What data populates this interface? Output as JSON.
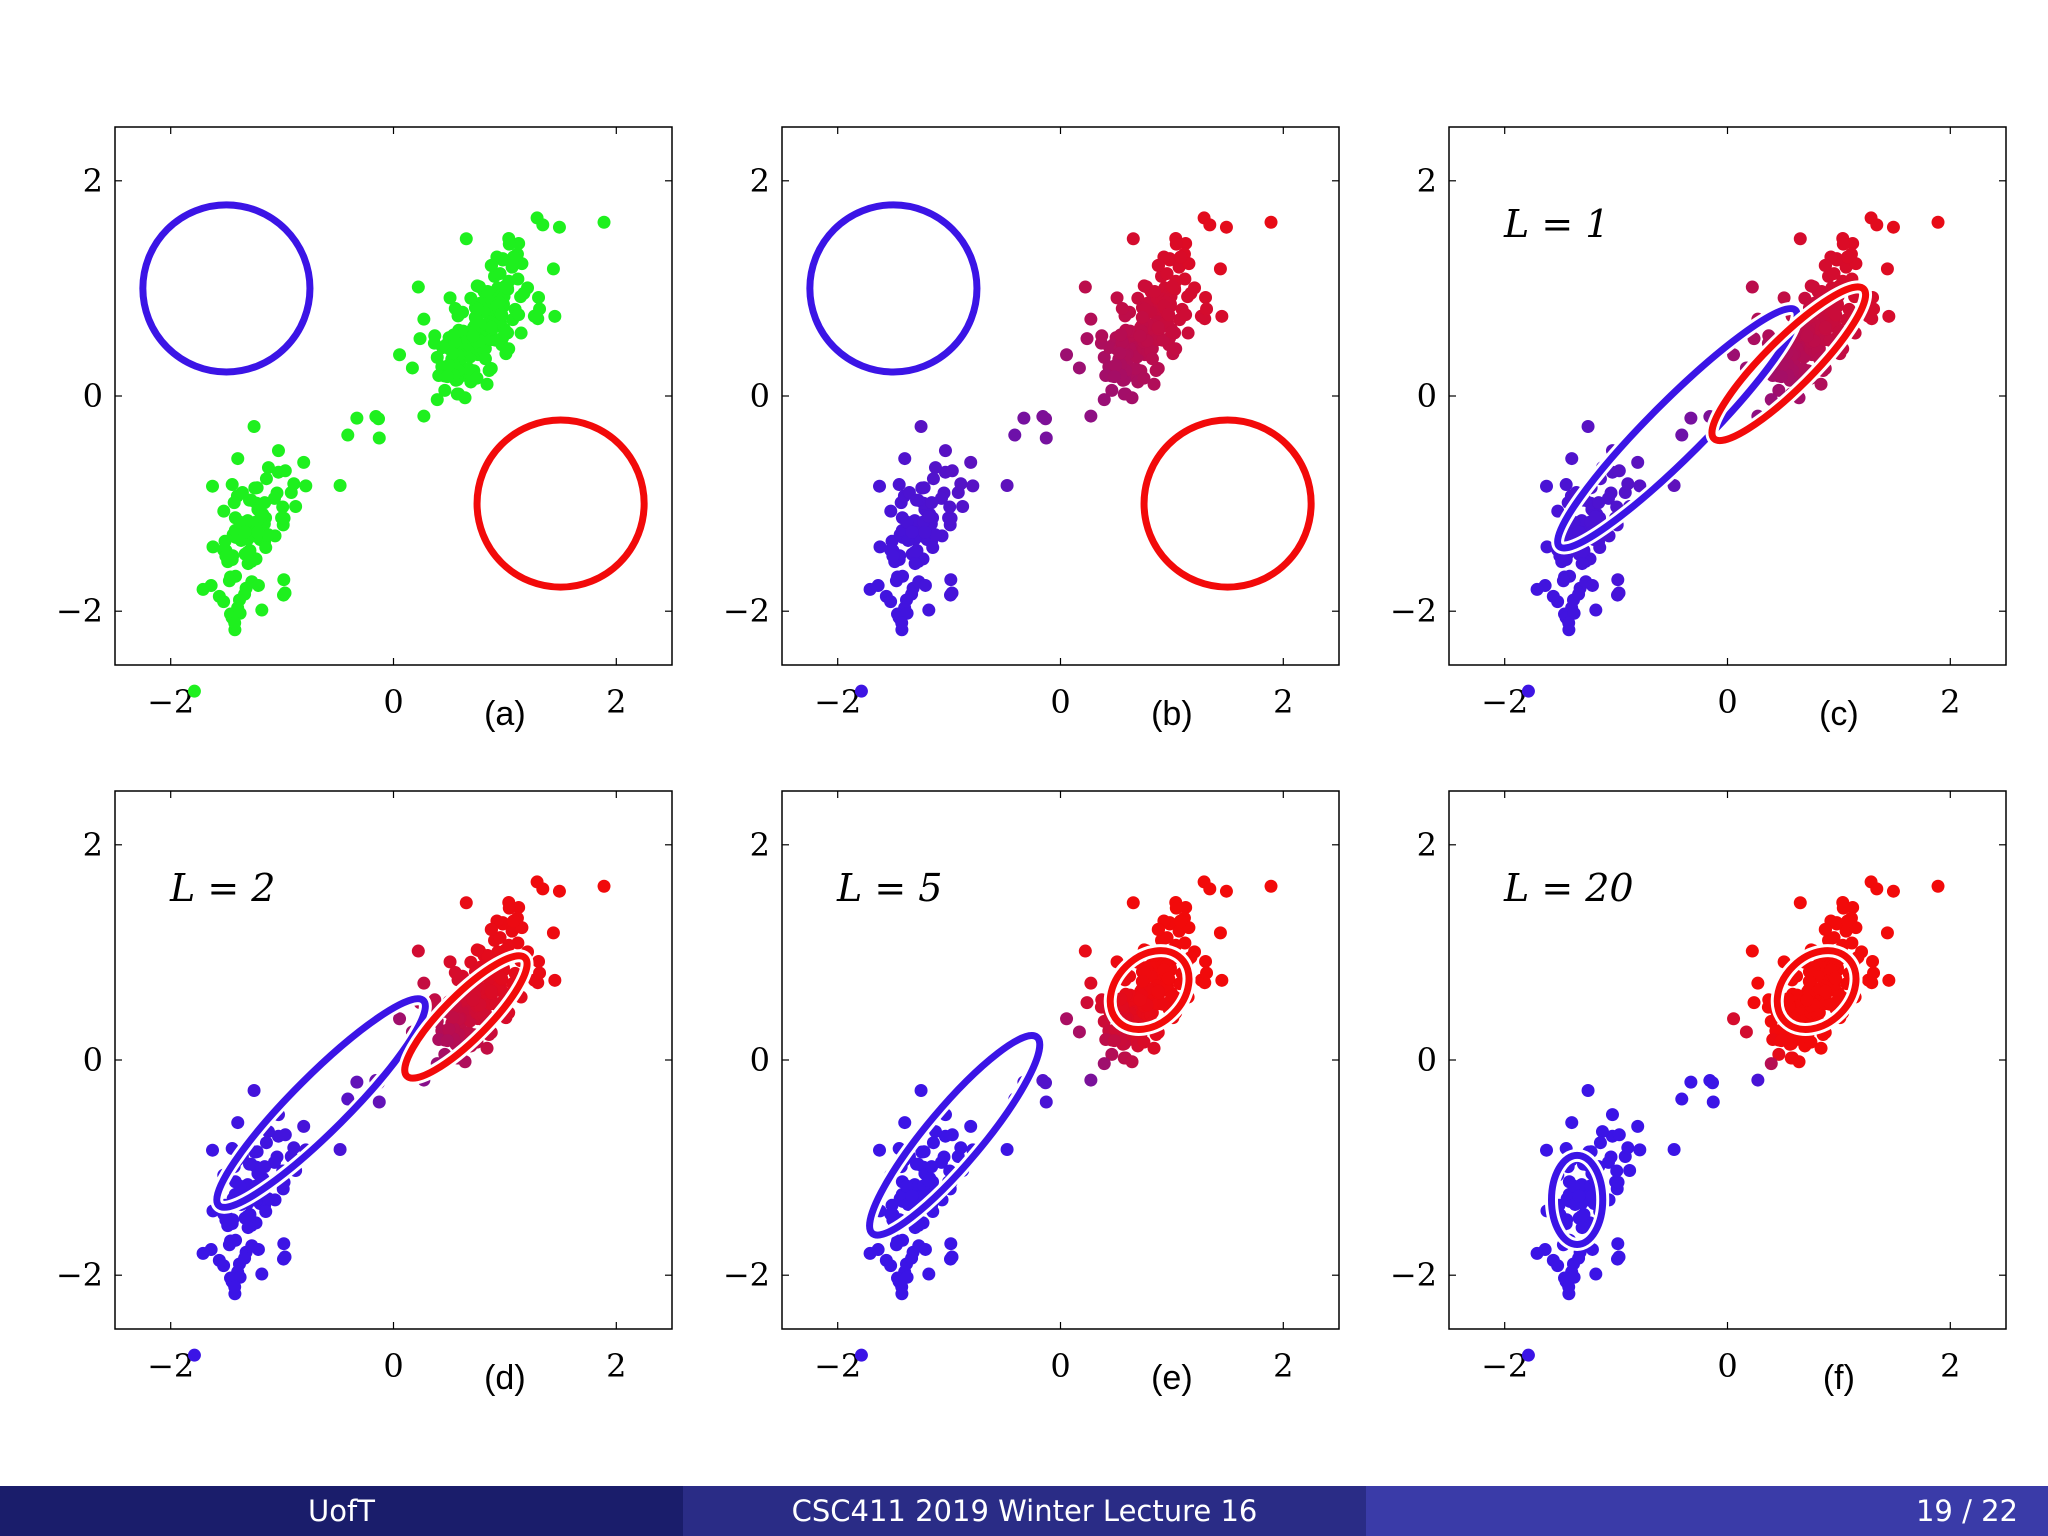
{
  "slide": {
    "footer": {
      "left": "UofT",
      "center": "CSC411 2019 Winter Lecture 16",
      "page": "19 / 22"
    }
  },
  "colors": {
    "blue": "#3b14e6",
    "red": "#f20a0a",
    "green": "#1ef01e",
    "axis": "#000000"
  },
  "chart_data": [
    {
      "type": "scatter",
      "panel": "(a)",
      "label": "",
      "xlim": [
        -2.5,
        2.5
      ],
      "ylim": [
        -2.5,
        2.5
      ],
      "xticks": [
        "−2",
        "0",
        "2"
      ],
      "yticks": [
        "−2",
        "0",
        "2"
      ],
      "point_coloring": "green",
      "ellipses": [
        {
          "color": "blue",
          "cx": -1.5,
          "cy": 1.0,
          "rx": 0.75,
          "ry": 0.75,
          "angle": 0
        },
        {
          "color": "red",
          "cx": 1.5,
          "cy": -1.0,
          "rx": 0.75,
          "ry": 0.75,
          "angle": 0
        }
      ]
    },
    {
      "type": "scatter",
      "panel": "(b)",
      "label": "",
      "xlim": [
        -2.5,
        2.5
      ],
      "ylim": [
        -2.5,
        2.5
      ],
      "xticks": [
        "−2",
        "0",
        "2"
      ],
      "yticks": [
        "−2",
        "0",
        "2"
      ],
      "point_coloring": "soft",
      "ellipses": [
        {
          "color": "blue",
          "cx": -1.5,
          "cy": 1.0,
          "rx": 0.75,
          "ry": 0.75,
          "angle": 0
        },
        {
          "color": "red",
          "cx": 1.5,
          "cy": -1.0,
          "rx": 0.75,
          "ry": 0.75,
          "angle": 0
        }
      ]
    },
    {
      "type": "scatter",
      "panel": "(c)",
      "label": "L = 1",
      "xlim": [
        -2.5,
        2.5
      ],
      "ylim": [
        -2.5,
        2.5
      ],
      "xticks": [
        "−2",
        "0",
        "2"
      ],
      "yticks": [
        "−2",
        "0",
        "2"
      ],
      "point_coloring": "soft",
      "ellipses": [
        {
          "color": "blue",
          "cx": -0.45,
          "cy": -0.3,
          "rx": 1.5,
          "ry": 0.25,
          "angle": 45
        },
        {
          "color": "red",
          "cx": 0.55,
          "cy": 0.3,
          "rx": 0.95,
          "ry": 0.22,
          "angle": 45
        }
      ]
    },
    {
      "type": "scatter",
      "panel": "(d)",
      "label": "L = 2",
      "xlim": [
        -2.5,
        2.5
      ],
      "ylim": [
        -2.5,
        2.5
      ],
      "xticks": [
        "−2",
        "0",
        "2"
      ],
      "yticks": [
        "−2",
        "0",
        "2"
      ],
      "point_coloring": "medium",
      "ellipses": [
        {
          "color": "blue",
          "cx": -0.65,
          "cy": -0.4,
          "rx": 1.3,
          "ry": 0.25,
          "angle": 45
        },
        {
          "color": "red",
          "cx": 0.65,
          "cy": 0.4,
          "rx": 0.75,
          "ry": 0.2,
          "angle": 45
        }
      ]
    },
    {
      "type": "scatter",
      "panel": "(e)",
      "label": "L = 5",
      "xlim": [
        -2.5,
        2.5
      ],
      "ylim": [
        -2.5,
        2.5
      ],
      "xticks": [
        "−2",
        "0",
        "2"
      ],
      "yticks": [
        "−2",
        "0",
        "2"
      ],
      "point_coloring": "sharp",
      "ellipses": [
        {
          "color": "blue",
          "cx": -0.95,
          "cy": -0.7,
          "rx": 1.15,
          "ry": 0.25,
          "angle": 50
        },
        {
          "color": "red",
          "cx": 0.8,
          "cy": 0.65,
          "rx": 0.4,
          "ry": 0.3,
          "angle": 45
        }
      ]
    },
    {
      "type": "scatter",
      "panel": "(f)",
      "label": "L = 20",
      "xlim": [
        -2.5,
        2.5
      ],
      "ylim": [
        -2.5,
        2.5
      ],
      "xticks": [
        "−2",
        "0",
        "2"
      ],
      "yticks": [
        "−2",
        "0",
        "2"
      ],
      "point_coloring": "hard",
      "ellipses": [
        {
          "color": "blue",
          "cx": -1.35,
          "cy": -1.3,
          "rx": 0.23,
          "ry": 0.4,
          "angle": 0
        },
        {
          "color": "red",
          "cx": 0.8,
          "cy": 0.65,
          "rx": 0.4,
          "ry": 0.3,
          "angle": 45
        }
      ]
    }
  ]
}
